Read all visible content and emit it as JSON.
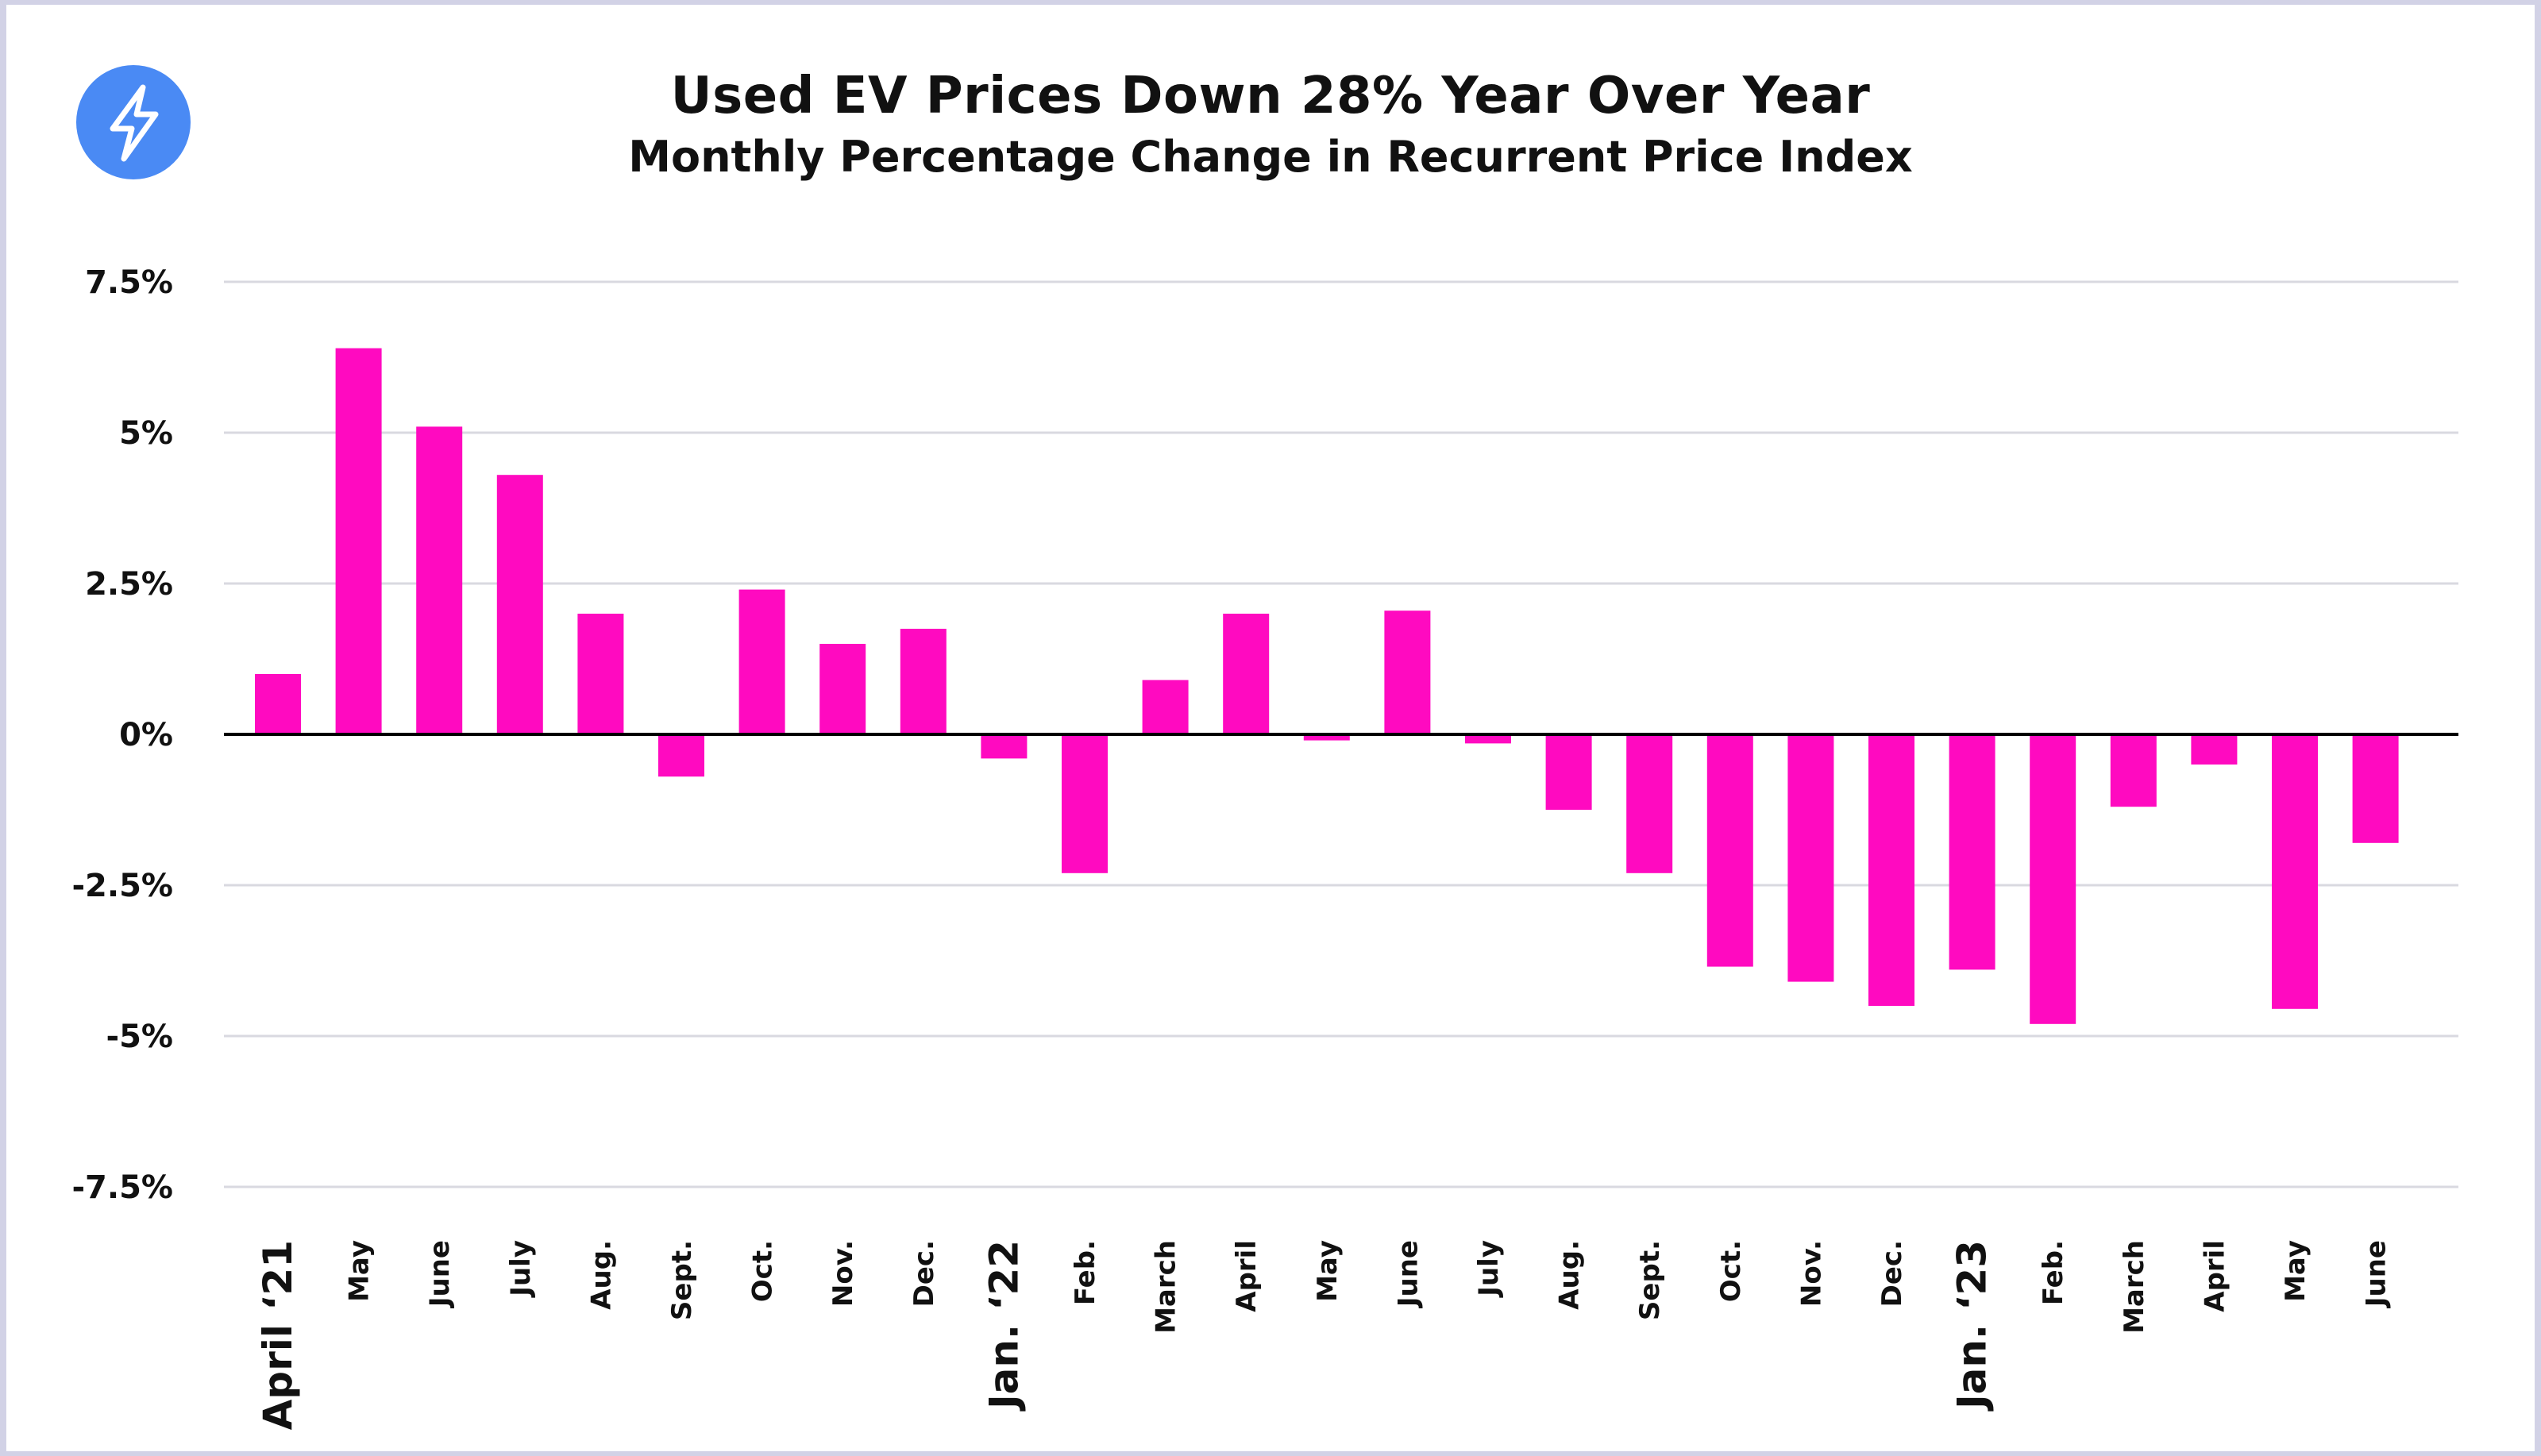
{
  "header": {
    "title": "Used EV Prices Down 28% Year Over Year",
    "subtitle": "Monthly Percentage Change in Recurrent Price Index",
    "logo_icon": "lightning-bolt-icon"
  },
  "colors": {
    "bar": "#ff0ac0",
    "logo": "#4a8af4",
    "grid": "#d9d9e0",
    "zero_line": "#000000",
    "frame": "#d2d2e6"
  },
  "chart_data": {
    "type": "bar",
    "title": "Used EV Prices Down 28% Year Over Year",
    "subtitle": "Monthly Percentage Change in Recurrent Price Index",
    "xlabel": "",
    "ylabel": "",
    "ylim": [
      -7.5,
      7.5
    ],
    "yticks": [
      7.5,
      5,
      2.5,
      0,
      -2.5,
      -5,
      -7.5
    ],
    "ytick_labels": [
      "7.5%",
      "5%",
      "2.5%",
      "0%",
      "-2.5%",
      "-5%",
      "-7.5%"
    ],
    "grid": true,
    "legend": "none",
    "categories": [
      "April ‘21",
      "May",
      "June",
      "July",
      "Aug.",
      "Sept.",
      "Oct.",
      "Nov.",
      "Dec.",
      "Jan. ‘22",
      "Feb.",
      "March",
      "April",
      "May",
      "June",
      "July",
      "Aug.",
      "Sept.",
      "Oct.",
      "Nov.",
      "Dec.",
      "Jan. ‘23",
      "Feb.",
      "March",
      "April",
      "May",
      "June"
    ],
    "major_categories": [
      "April ‘21",
      "Jan. ‘22",
      "Jan. ‘23"
    ],
    "values": [
      1.0,
      6.4,
      5.1,
      4.3,
      2.0,
      -0.7,
      2.4,
      1.5,
      1.75,
      -0.4,
      -2.3,
      0.9,
      2.0,
      -0.1,
      2.05,
      -0.15,
      -1.25,
      -2.3,
      -3.85,
      -4.1,
      -4.5,
      -3.9,
      -4.8,
      -1.2,
      -0.5,
      -4.55,
      -1.8
    ]
  }
}
